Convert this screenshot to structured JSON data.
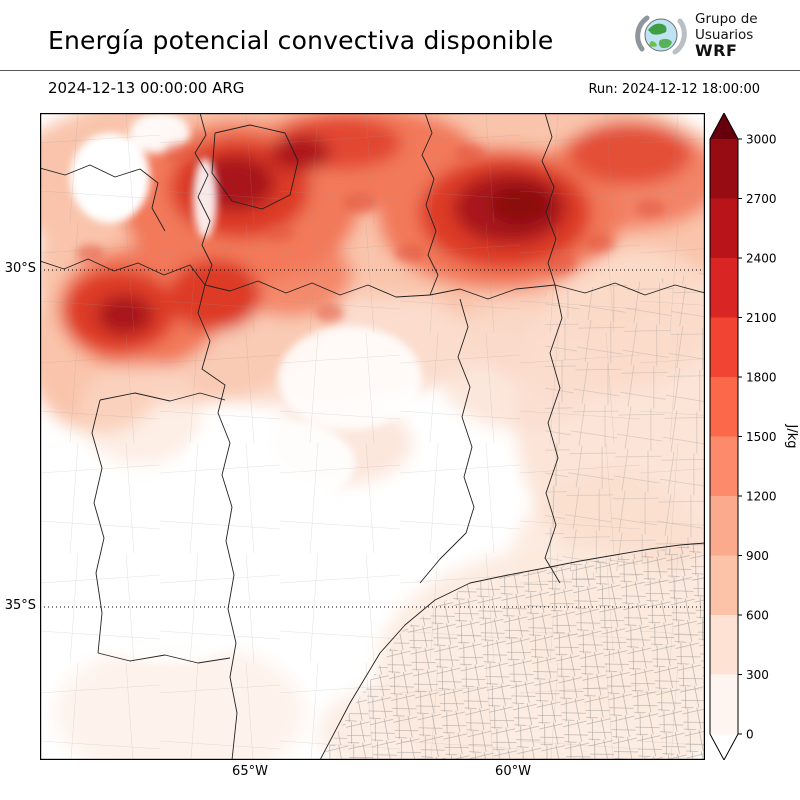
{
  "header": {
    "title": "Energía potencial convectiva disponible",
    "logo": {
      "line1": "Grupo de",
      "line2": "Usuarios",
      "line3": "WRF"
    }
  },
  "subheader": {
    "valid_time": "2024-12-13 00:00:00 ARG",
    "run": "Run: 2024-12-12 18:00:00"
  },
  "map": {
    "lat_ticks": [
      "30°S",
      "35°S"
    ],
    "lon_ticks": [
      "65°W",
      "60°W"
    ]
  },
  "colorbar": {
    "unit": "J/kg",
    "ticks_top_to_bottom": [
      "3000",
      "2700",
      "2400",
      "2100",
      "1800",
      "1500",
      "1200",
      "900",
      "600",
      "300",
      "0"
    ],
    "segments_top_to_bottom": [
      "#970b13",
      "#b81419",
      "#d92523",
      "#f14432",
      "#fb694a",
      "#fc8a6b",
      "#fcaa8e",
      "#fcc3a8",
      "#fee3d4",
      "#fff5f0"
    ],
    "over_color": "#67000d",
    "under_color": "#ffffff",
    "outline_color": "#000000"
  },
  "chart_data": {
    "type": "heatmap",
    "title": "Energía potencial convectiva disponible",
    "valid_time": "2024-12-13 00:00:00 ARG",
    "run_time": "Run: 2024-12-12 18:00:00",
    "units": "J/kg",
    "levels": [
      0,
      300,
      600,
      900,
      1200,
      1500,
      1800,
      2100,
      2400,
      2700,
      3000
    ],
    "lat_gridlines": [
      "30°S",
      "35°S"
    ],
    "lon_gridlines": [
      "65°W",
      "60°W"
    ],
    "legend_position": "right",
    "field_summary": "High CAPE (1200-3000 J/kg) band across the north of the domain; near-zero values in the south and center"
  }
}
